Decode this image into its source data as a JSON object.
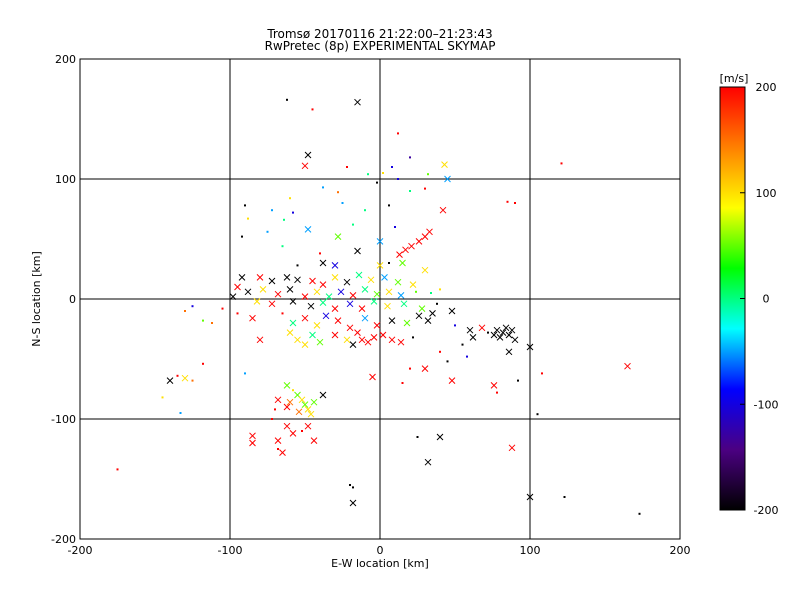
{
  "chart_data": {
    "type": "scatter",
    "title": "Tromsø 20170116 21:22:00–21:23:43",
    "subtitle": "RwPretec (8p) EXPERIMENTAL SKYMAP",
    "xlabel": "E-W location [km]",
    "ylabel": "N-S location [km]",
    "xlim": [
      -200,
      200
    ],
    "ylim": [
      -200,
      200
    ],
    "x_ticks": [
      "-200",
      "-100",
      "0",
      "100",
      "200"
    ],
    "y_ticks": [
      "-200",
      "-100",
      "0",
      "100",
      "200"
    ],
    "grid": true,
    "colorbar": {
      "label": "[m/s]",
      "range": [
        -200,
        200
      ],
      "ticks": [
        "200",
        "100",
        "0",
        "-100",
        "-200"
      ],
      "colors": [
        "#000000",
        "#4b0082",
        "#0000ff",
        "#00ffff",
        "#00ff00",
        "#ffff00",
        "#ff8000",
        "#ff0000"
      ]
    },
    "markers": [
      "dot (small, near measurements)",
      "x (cross, far measurements)"
    ],
    "points": [
      {
        "x": -62,
        "y": 166,
        "v": -200,
        "m": "dot"
      },
      {
        "x": -45,
        "y": 158,
        "v": 200,
        "m": "dot"
      },
      {
        "x": -15,
        "y": 164,
        "v": -200,
        "m": "x"
      },
      {
        "x": 12,
        "y": 138,
        "v": 200,
        "m": "dot"
      },
      {
        "x": -48,
        "y": 120,
        "v": -200,
        "m": "x"
      },
      {
        "x": -50,
        "y": 111,
        "v": 200,
        "m": "x"
      },
      {
        "x": 43,
        "y": 112,
        "v": 100,
        "m": "x"
      },
      {
        "x": 121,
        "y": 113,
        "v": 200,
        "m": "dot"
      },
      {
        "x": -22,
        "y": 110,
        "v": 200,
        "m": "dot"
      },
      {
        "x": 8,
        "y": 110,
        "v": -100,
        "m": "dot"
      },
      {
        "x": 20,
        "y": 118,
        "v": -130,
        "m": "dot"
      },
      {
        "x": 2,
        "y": 105,
        "v": 100,
        "m": "dot"
      },
      {
        "x": -8,
        "y": 104,
        "v": 0,
        "m": "dot"
      },
      {
        "x": 45,
        "y": 100,
        "v": -50,
        "m": "x"
      },
      {
        "x": 32,
        "y": 104,
        "v": 50,
        "m": "dot"
      },
      {
        "x": -2,
        "y": 97,
        "v": -200,
        "m": "dot"
      },
      {
        "x": 12,
        "y": 100,
        "v": -100,
        "m": "dot"
      },
      {
        "x": -38,
        "y": 93,
        "v": -50,
        "m": "dot"
      },
      {
        "x": -28,
        "y": 89,
        "v": 150,
        "m": "dot"
      },
      {
        "x": 20,
        "y": 90,
        "v": 0,
        "m": "dot"
      },
      {
        "x": 30,
        "y": 92,
        "v": 200,
        "m": "dot"
      },
      {
        "x": -60,
        "y": 84,
        "v": 100,
        "m": "dot"
      },
      {
        "x": 85,
        "y": 81,
        "v": 200,
        "m": "dot"
      },
      {
        "x": 90,
        "y": 80,
        "v": 200,
        "m": "dot"
      },
      {
        "x": 42,
        "y": 74,
        "v": 200,
        "m": "x"
      },
      {
        "x": -90,
        "y": 78,
        "v": -200,
        "m": "dot"
      },
      {
        "x": -72,
        "y": 74,
        "v": -50,
        "m": "dot"
      },
      {
        "x": -58,
        "y": 72,
        "v": -100,
        "m": "dot"
      },
      {
        "x": -10,
        "y": 74,
        "v": 0,
        "m": "dot"
      },
      {
        "x": 6,
        "y": 78,
        "v": -200,
        "m": "dot"
      },
      {
        "x": -25,
        "y": 80,
        "v": -50,
        "m": "dot"
      },
      {
        "x": -88,
        "y": 67,
        "v": 100,
        "m": "dot"
      },
      {
        "x": -64,
        "y": 66,
        "v": 0,
        "m": "dot"
      },
      {
        "x": -48,
        "y": 58,
        "v": -50,
        "m": "x"
      },
      {
        "x": -75,
        "y": 56,
        "v": -50,
        "m": "dot"
      },
      {
        "x": -18,
        "y": 62,
        "v": 0,
        "m": "dot"
      },
      {
        "x": 10,
        "y": 60,
        "v": -100,
        "m": "dot"
      },
      {
        "x": 33,
        "y": 56,
        "v": 200,
        "m": "x"
      },
      {
        "x": 30,
        "y": 52,
        "v": 200,
        "m": "x"
      },
      {
        "x": 26,
        "y": 48,
        "v": 200,
        "m": "x"
      },
      {
        "x": 21,
        "y": 44,
        "v": 200,
        "m": "x"
      },
      {
        "x": 17,
        "y": 41,
        "v": 200,
        "m": "x"
      },
      {
        "x": 13,
        "y": 37,
        "v": 200,
        "m": "x"
      },
      {
        "x": -28,
        "y": 52,
        "v": 50,
        "m": "x"
      },
      {
        "x": -15,
        "y": 40,
        "v": -200,
        "m": "x"
      },
      {
        "x": 0,
        "y": 48,
        "v": -50,
        "m": "x"
      },
      {
        "x": -92,
        "y": 52,
        "v": -200,
        "m": "dot"
      },
      {
        "x": -65,
        "y": 44,
        "v": 0,
        "m": "dot"
      },
      {
        "x": -40,
        "y": 38,
        "v": 200,
        "m": "dot"
      },
      {
        "x": -55,
        "y": 28,
        "v": -200,
        "m": "dot"
      },
      {
        "x": 0,
        "y": 28,
        "v": 100,
        "m": "x"
      },
      {
        "x": -38,
        "y": 30,
        "v": -200,
        "m": "x"
      },
      {
        "x": -30,
        "y": 28,
        "v": -100,
        "m": "x"
      },
      {
        "x": 6,
        "y": 30,
        "v": -200,
        "m": "dot"
      },
      {
        "x": 15,
        "y": 30,
        "v": 50,
        "m": "x"
      },
      {
        "x": 30,
        "y": 24,
        "v": 100,
        "m": "x"
      },
      {
        "x": -92,
        "y": 18,
        "v": -200,
        "m": "x"
      },
      {
        "x": -80,
        "y": 18,
        "v": 200,
        "m": "x"
      },
      {
        "x": -72,
        "y": 15,
        "v": -200,
        "m": "x"
      },
      {
        "x": -62,
        "y": 18,
        "v": -200,
        "m": "x"
      },
      {
        "x": -55,
        "y": 16,
        "v": -200,
        "m": "x"
      },
      {
        "x": -45,
        "y": 15,
        "v": 200,
        "m": "x"
      },
      {
        "x": -38,
        "y": 12,
        "v": 200,
        "m": "x"
      },
      {
        "x": -30,
        "y": 18,
        "v": 100,
        "m": "x"
      },
      {
        "x": -22,
        "y": 14,
        "v": -200,
        "m": "x"
      },
      {
        "x": -14,
        "y": 20,
        "v": 0,
        "m": "x"
      },
      {
        "x": -6,
        "y": 16,
        "v": 100,
        "m": "x"
      },
      {
        "x": 3,
        "y": 18,
        "v": -50,
        "m": "x"
      },
      {
        "x": 12,
        "y": 14,
        "v": 50,
        "m": "x"
      },
      {
        "x": 22,
        "y": 12,
        "v": 100,
        "m": "x"
      },
      {
        "x": -95,
        "y": 10,
        "v": 200,
        "m": "x"
      },
      {
        "x": -88,
        "y": 6,
        "v": -200,
        "m": "x"
      },
      {
        "x": -78,
        "y": 8,
        "v": 100,
        "m": "x"
      },
      {
        "x": -68,
        "y": 4,
        "v": 200,
        "m": "x"
      },
      {
        "x": -60,
        "y": 8,
        "v": -200,
        "m": "x"
      },
      {
        "x": -50,
        "y": 2,
        "v": 200,
        "m": "x"
      },
      {
        "x": -42,
        "y": 6,
        "v": 100,
        "m": "x"
      },
      {
        "x": -34,
        "y": 2,
        "v": 0,
        "m": "x"
      },
      {
        "x": -26,
        "y": 6,
        "v": -100,
        "m": "x"
      },
      {
        "x": -18,
        "y": 3,
        "v": 200,
        "m": "x"
      },
      {
        "x": -10,
        "y": 8,
        "v": 0,
        "m": "x"
      },
      {
        "x": -2,
        "y": 4,
        "v": 50,
        "m": "x"
      },
      {
        "x": 6,
        "y": 6,
        "v": 100,
        "m": "x"
      },
      {
        "x": 14,
        "y": 3,
        "v": -50,
        "m": "x"
      },
      {
        "x": 24,
        "y": 6,
        "v": 50,
        "m": "dot"
      },
      {
        "x": 34,
        "y": 5,
        "v": 0,
        "m": "dot"
      },
      {
        "x": 40,
        "y": 8,
        "v": 100,
        "m": "dot"
      },
      {
        "x": -98,
        "y": 2,
        "v": -200,
        "m": "x"
      },
      {
        "x": -82,
        "y": -2,
        "v": 100,
        "m": "x"
      },
      {
        "x": -72,
        "y": -4,
        "v": 200,
        "m": "x"
      },
      {
        "x": -58,
        "y": -2,
        "v": -200,
        "m": "x"
      },
      {
        "x": -46,
        "y": -6,
        "v": -200,
        "m": "x"
      },
      {
        "x": -38,
        "y": -3,
        "v": 0,
        "m": "x"
      },
      {
        "x": -30,
        "y": -8,
        "v": 200,
        "m": "x"
      },
      {
        "x": -20,
        "y": -4,
        "v": -100,
        "m": "x"
      },
      {
        "x": -12,
        "y": -8,
        "v": 200,
        "m": "x"
      },
      {
        "x": -4,
        "y": -2,
        "v": 0,
        "m": "x"
      },
      {
        "x": 5,
        "y": -6,
        "v": 100,
        "m": "x"
      },
      {
        "x": 16,
        "y": -4,
        "v": 0,
        "m": "x"
      },
      {
        "x": 28,
        "y": -8,
        "v": 50,
        "m": "x"
      },
      {
        "x": 38,
        "y": -4,
        "v": -200,
        "m": "dot"
      },
      {
        "x": 48,
        "y": -10,
        "v": -200,
        "m": "x"
      },
      {
        "x": -105,
        "y": -8,
        "v": 200,
        "m": "dot"
      },
      {
        "x": -95,
        "y": -12,
        "v": 200,
        "m": "dot"
      },
      {
        "x": -85,
        "y": -16,
        "v": 200,
        "m": "x"
      },
      {
        "x": -65,
        "y": -12,
        "v": 200,
        "m": "dot"
      },
      {
        "x": -58,
        "y": -20,
        "v": 0,
        "m": "x"
      },
      {
        "x": -50,
        "y": -16,
        "v": 200,
        "m": "x"
      },
      {
        "x": -42,
        "y": -22,
        "v": 100,
        "m": "x"
      },
      {
        "x": -36,
        "y": -14,
        "v": -100,
        "m": "x"
      },
      {
        "x": -28,
        "y": -18,
        "v": 200,
        "m": "x"
      },
      {
        "x": -20,
        "y": -24,
        "v": 200,
        "m": "x"
      },
      {
        "x": -10,
        "y": -16,
        "v": -50,
        "m": "x"
      },
      {
        "x": -2,
        "y": -22,
        "v": 200,
        "m": "x"
      },
      {
        "x": 8,
        "y": -18,
        "v": -200,
        "m": "x"
      },
      {
        "x": 18,
        "y": -20,
        "v": 50,
        "m": "x"
      },
      {
        "x": 26,
        "y": -14,
        "v": -200,
        "m": "x"
      },
      {
        "x": 32,
        "y": -18,
        "v": -200,
        "m": "x"
      },
      {
        "x": 35,
        "y": -12,
        "v": -200,
        "m": "x"
      },
      {
        "x": -125,
        "y": -6,
        "v": -100,
        "m": "dot"
      },
      {
        "x": -130,
        "y": -10,
        "v": 150,
        "m": "dot"
      },
      {
        "x": -118,
        "y": -18,
        "v": 50,
        "m": "dot"
      },
      {
        "x": -112,
        "y": -20,
        "v": 150,
        "m": "dot"
      },
      {
        "x": -80,
        "y": -34,
        "v": 200,
        "m": "x"
      },
      {
        "x": -60,
        "y": -28,
        "v": 100,
        "m": "x"
      },
      {
        "x": -55,
        "y": -34,
        "v": 100,
        "m": "x"
      },
      {
        "x": -50,
        "y": -38,
        "v": 100,
        "m": "x"
      },
      {
        "x": -45,
        "y": -30,
        "v": 0,
        "m": "x"
      },
      {
        "x": -40,
        "y": -36,
        "v": 50,
        "m": "x"
      },
      {
        "x": -30,
        "y": -30,
        "v": 200,
        "m": "x"
      },
      {
        "x": -22,
        "y": -34,
        "v": 100,
        "m": "x"
      },
      {
        "x": -15,
        "y": -28,
        "v": 200,
        "m": "x"
      },
      {
        "x": -12,
        "y": -34,
        "v": 200,
        "m": "x"
      },
      {
        "x": -8,
        "y": -36,
        "v": 200,
        "m": "x"
      },
      {
        "x": -4,
        "y": -32,
        "v": 200,
        "m": "x"
      },
      {
        "x": 2,
        "y": -30,
        "v": 200,
        "m": "x"
      },
      {
        "x": 8,
        "y": -34,
        "v": 200,
        "m": "x"
      },
      {
        "x": 14,
        "y": -36,
        "v": 200,
        "m": "x"
      },
      {
        "x": -18,
        "y": -38,
        "v": -200,
        "m": "x"
      },
      {
        "x": 22,
        "y": -32,
        "v": -200,
        "m": "dot"
      },
      {
        "x": 60,
        "y": -26,
        "v": -200,
        "m": "x"
      },
      {
        "x": 62,
        "y": -32,
        "v": -200,
        "m": "x"
      },
      {
        "x": 68,
        "y": -24,
        "v": 200,
        "m": "x"
      },
      {
        "x": 72,
        "y": -28,
        "v": -200,
        "m": "dot"
      },
      {
        "x": 76,
        "y": -30,
        "v": -200,
        "m": "x"
      },
      {
        "x": 78,
        "y": -26,
        "v": -200,
        "m": "x"
      },
      {
        "x": 80,
        "y": -32,
        "v": -200,
        "m": "x"
      },
      {
        "x": 82,
        "y": -28,
        "v": -200,
        "m": "x"
      },
      {
        "x": 84,
        "y": -24,
        "v": -200,
        "m": "x"
      },
      {
        "x": 86,
        "y": -30,
        "v": -200,
        "m": "x"
      },
      {
        "x": 88,
        "y": -26,
        "v": -200,
        "m": "x"
      },
      {
        "x": 90,
        "y": -34,
        "v": -200,
        "m": "x"
      },
      {
        "x": 86,
        "y": -44,
        "v": -200,
        "m": "x"
      },
      {
        "x": 100,
        "y": -40,
        "v": -200,
        "m": "x"
      },
      {
        "x": 50,
        "y": -22,
        "v": -100,
        "m": "dot"
      },
      {
        "x": 55,
        "y": -38,
        "v": -200,
        "m": "dot"
      },
      {
        "x": 58,
        "y": -48,
        "v": -100,
        "m": "dot"
      },
      {
        "x": 45,
        "y": -52,
        "v": -200,
        "m": "dot"
      },
      {
        "x": 40,
        "y": -44,
        "v": 200,
        "m": "dot"
      },
      {
        "x": 30,
        "y": -58,
        "v": 200,
        "m": "x"
      },
      {
        "x": 48,
        "y": -68,
        "v": 200,
        "m": "x"
      },
      {
        "x": 76,
        "y": -72,
        "v": 200,
        "m": "x"
      },
      {
        "x": 78,
        "y": -78,
        "v": 200,
        "m": "dot"
      },
      {
        "x": 92,
        "y": -68,
        "v": -200,
        "m": "dot"
      },
      {
        "x": 108,
        "y": -62,
        "v": 200,
        "m": "dot"
      },
      {
        "x": 165,
        "y": -56,
        "v": 200,
        "m": "x"
      },
      {
        "x": -5,
        "y": -65,
        "v": 200,
        "m": "x"
      },
      {
        "x": 20,
        "y": -58,
        "v": 200,
        "m": "dot"
      },
      {
        "x": 15,
        "y": -70,
        "v": 200,
        "m": "dot"
      },
      {
        "x": -90,
        "y": -62,
        "v": -50,
        "m": "dot"
      },
      {
        "x": -118,
        "y": -54,
        "v": 200,
        "m": "dot"
      },
      {
        "x": -140,
        "y": -68,
        "v": -200,
        "m": "x"
      },
      {
        "x": -135,
        "y": -64,
        "v": 200,
        "m": "dot"
      },
      {
        "x": -130,
        "y": -66,
        "v": 100,
        "m": "x"
      },
      {
        "x": -125,
        "y": -68,
        "v": 150,
        "m": "dot"
      },
      {
        "x": -145,
        "y": -82,
        "v": 100,
        "m": "dot"
      },
      {
        "x": -133,
        "y": -95,
        "v": -50,
        "m": "dot"
      },
      {
        "x": -62,
        "y": -72,
        "v": 50,
        "m": "x"
      },
      {
        "x": -58,
        "y": -76,
        "v": 100,
        "m": "dot"
      },
      {
        "x": -55,
        "y": -80,
        "v": 50,
        "m": "x"
      },
      {
        "x": -52,
        "y": -84,
        "v": 100,
        "m": "x"
      },
      {
        "x": -50,
        "y": -88,
        "v": 50,
        "m": "x"
      },
      {
        "x": -48,
        "y": -92,
        "v": 100,
        "m": "x"
      },
      {
        "x": -54,
        "y": -94,
        "v": 150,
        "m": "x"
      },
      {
        "x": -46,
        "y": -96,
        "v": 100,
        "m": "x"
      },
      {
        "x": -60,
        "y": -86,
        "v": 150,
        "m": "x"
      },
      {
        "x": -44,
        "y": -86,
        "v": 50,
        "m": "x"
      },
      {
        "x": -62,
        "y": -90,
        "v": 200,
        "m": "x"
      },
      {
        "x": -68,
        "y": -84,
        "v": 200,
        "m": "x"
      },
      {
        "x": -70,
        "y": -92,
        "v": 200,
        "m": "dot"
      },
      {
        "x": -38,
        "y": -80,
        "v": -200,
        "m": "x"
      },
      {
        "x": -72,
        "y": -100,
        "v": 200,
        "m": "dot"
      },
      {
        "x": -62,
        "y": -106,
        "v": 200,
        "m": "x"
      },
      {
        "x": -58,
        "y": -112,
        "v": 200,
        "m": "x"
      },
      {
        "x": -52,
        "y": -110,
        "v": 200,
        "m": "dot"
      },
      {
        "x": -48,
        "y": -106,
        "v": 200,
        "m": "x"
      },
      {
        "x": -44,
        "y": -118,
        "v": 200,
        "m": "x"
      },
      {
        "x": -68,
        "y": -118,
        "v": 200,
        "m": "x"
      },
      {
        "x": -85,
        "y": -114,
        "v": 200,
        "m": "x"
      },
      {
        "x": -85,
        "y": -120,
        "v": 200,
        "m": "x"
      },
      {
        "x": -65,
        "y": -128,
        "v": 200,
        "m": "x"
      },
      {
        "x": -68,
        "y": -125,
        "v": 200,
        "m": "dot"
      },
      {
        "x": 25,
        "y": -115,
        "v": -200,
        "m": "dot"
      },
      {
        "x": 40,
        "y": -115,
        "v": -200,
        "m": "x"
      },
      {
        "x": 32,
        "y": -136,
        "v": -200,
        "m": "x"
      },
      {
        "x": 88,
        "y": -124,
        "v": 200,
        "m": "x"
      },
      {
        "x": 105,
        "y": -96,
        "v": -200,
        "m": "dot"
      },
      {
        "x": -175,
        "y": -142,
        "v": 200,
        "m": "dot"
      },
      {
        "x": -20,
        "y": -155,
        "v": -200,
        "m": "dot"
      },
      {
        "x": -18,
        "y": -157,
        "v": -200,
        "m": "dot"
      },
      {
        "x": -18,
        "y": -170,
        "v": -200,
        "m": "x"
      },
      {
        "x": 100,
        "y": -165,
        "v": -200,
        "m": "x"
      },
      {
        "x": 123,
        "y": -165,
        "v": -200,
        "m": "dot"
      },
      {
        "x": 173,
        "y": -179,
        "v": -200,
        "m": "dot"
      }
    ]
  }
}
